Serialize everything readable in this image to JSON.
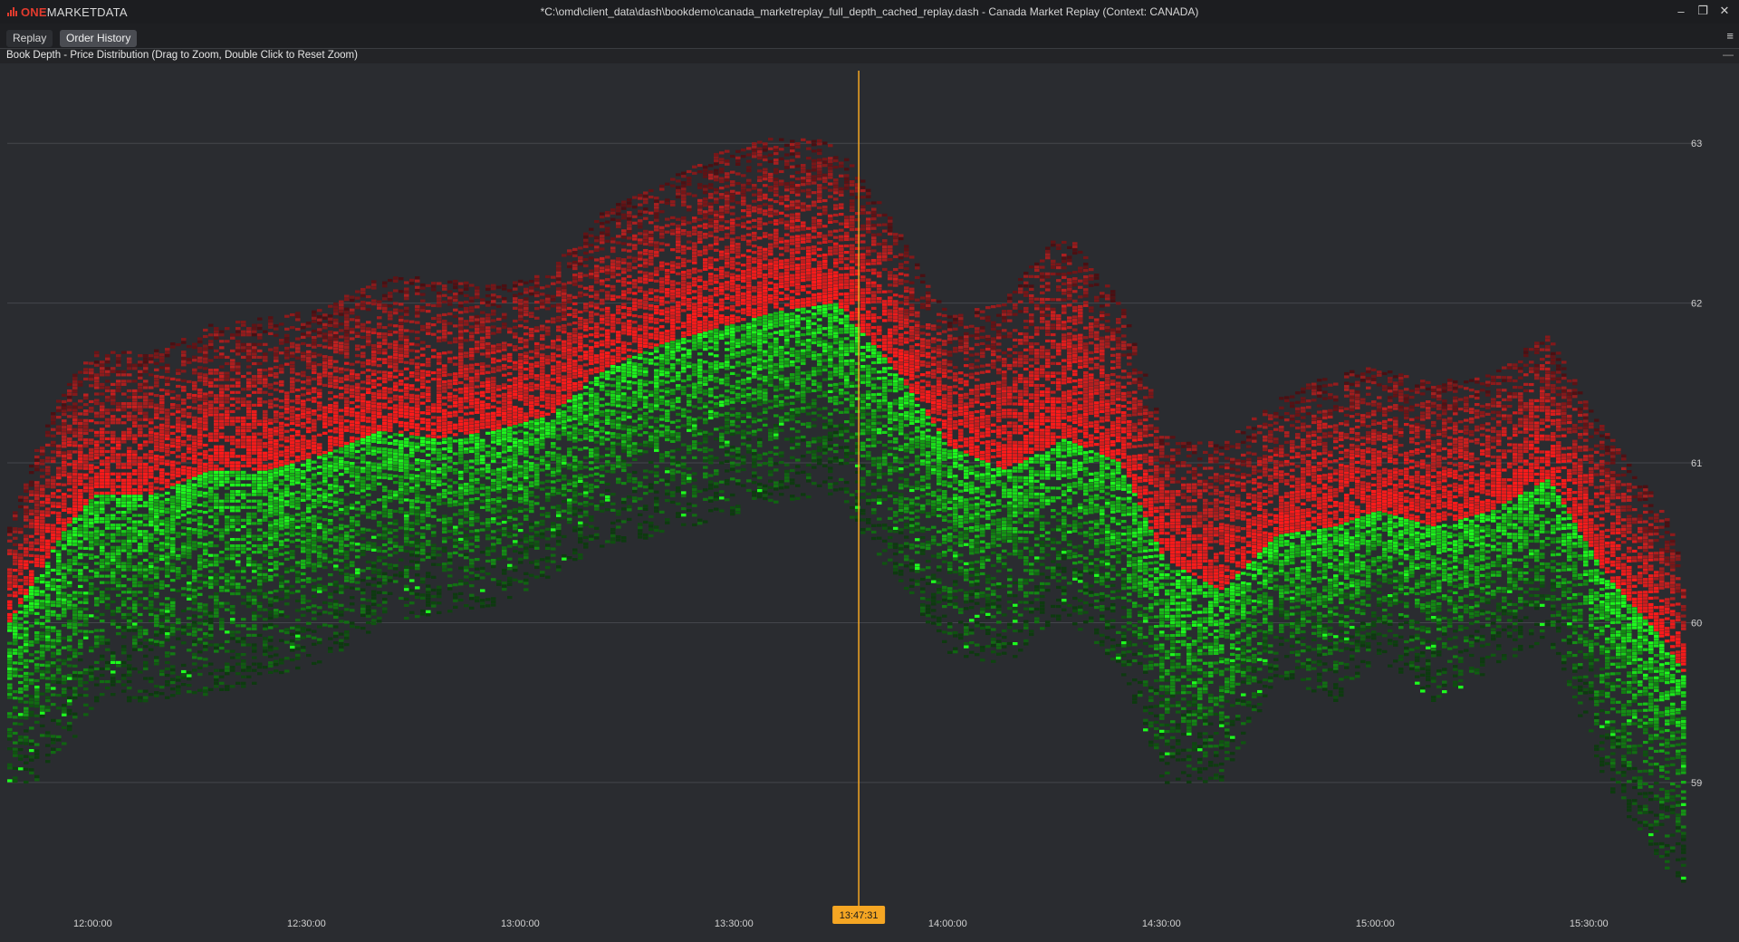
{
  "app": {
    "logo_one": "ONE",
    "logo_rest": "MARKETDATA",
    "window_title": "*C:\\omd\\client_data\\dash\\bookdemo\\canada_marketreplay_full_depth_cached_replay.dash - Canada Market Replay (Context: CANADA)",
    "controls": {
      "minimize": "‒",
      "restore": "❐",
      "close": "✕"
    }
  },
  "tabs": [
    {
      "label": "Replay",
      "active": false
    },
    {
      "label": "Order History",
      "active": true
    }
  ],
  "menu_icon": "≡",
  "panel": {
    "title": "Book Depth - Price Distribution (Drag to Zoom, Double Click to Reset Zoom)",
    "minimize": "—"
  },
  "colors": {
    "background": "#2a2c30",
    "grid": "#44464b",
    "ask_bright": "#ff1a1a",
    "ask_mid": "#b02020",
    "ask_dark": "#4a0f12",
    "bid_bright": "#1dff1d",
    "bid_mid": "#149414",
    "bid_dark": "#0d3a0f",
    "cursor": "#f5a623"
  },
  "chart_data": {
    "type": "heatmap",
    "title": "Book Depth - Price Distribution (Drag to Zoom, Double Click to Reset Zoom)",
    "x_ticks": [
      "12:00:00",
      "12:30:00",
      "13:00:00",
      "13:30:00",
      "14:00:00",
      "14:30:00",
      "15:00:00",
      "15:30:00"
    ],
    "y_ticks": [
      "59",
      "60",
      "61",
      "62",
      "63"
    ],
    "xlim": [
      "11:48:00",
      "15:47:00"
    ],
    "ylim": [
      58.2,
      63.5
    ],
    "grid": true,
    "cursor_time": "13:47:31",
    "series": [
      {
        "name": "ask",
        "color_scale": [
          "#4a0f12",
          "#b02020",
          "#ff1a1a"
        ]
      },
      {
        "name": "bid",
        "color_scale": [
          "#0d3a0f",
          "#149414",
          "#1dff1d"
        ]
      }
    ],
    "profile": {
      "time": [
        "11:48",
        "11:52",
        "11:56",
        "12:00",
        "12:08",
        "12:16",
        "12:24",
        "12:32",
        "12:40",
        "12:48",
        "12:56",
        "13:04",
        "13:12",
        "13:20",
        "13:28",
        "13:36",
        "13:44",
        "13:52",
        "14:00",
        "14:08",
        "14:16",
        "14:24",
        "14:30",
        "14:38",
        "14:46",
        "14:54",
        "15:00",
        "15:08",
        "15:16",
        "15:24",
        "15:32",
        "15:40",
        "15:47"
      ],
      "mid": [
        60.0,
        60.3,
        60.6,
        60.8,
        60.8,
        60.95,
        60.95,
        61.05,
        61.2,
        61.15,
        61.2,
        61.3,
        61.6,
        61.75,
        61.85,
        61.95,
        62.0,
        61.6,
        61.1,
        60.95,
        61.15,
        61.0,
        60.4,
        60.2,
        60.55,
        60.6,
        60.7,
        60.6,
        60.7,
        60.9,
        60.3,
        59.9,
        59.4
      ],
      "ask_depth": [
        0.6,
        0.8,
        0.9,
        0.9,
        0.9,
        0.9,
        0.95,
        0.9,
        0.95,
        1.0,
        0.9,
        0.9,
        1.0,
        1.0,
        1.1,
        1.1,
        1.0,
        0.9,
        0.8,
        1.1,
        1.3,
        1.0,
        0.8,
        0.9,
        0.85,
        0.95,
        0.9,
        0.9,
        0.85,
        0.9,
        0.9,
        0.8,
        0.6
      ],
      "bid_depth": [
        1.0,
        1.3,
        1.4,
        1.3,
        1.3,
        1.4,
        1.3,
        1.3,
        1.2,
        1.1,
        1.1,
        1.0,
        1.1,
        1.2,
        1.2,
        1.2,
        1.2,
        1.3,
        1.3,
        1.2,
        1.1,
        1.3,
        1.4,
        1.2,
        0.9,
        1.1,
        0.9,
        1.1,
        1.0,
        1.0,
        1.3,
        1.4,
        1.2
      ]
    }
  }
}
